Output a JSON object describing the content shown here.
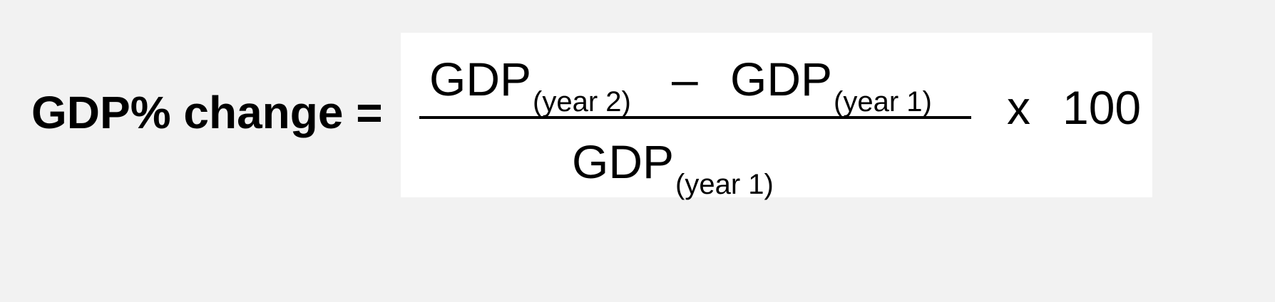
{
  "lhs_label": "GDP% change =",
  "numerator": {
    "left_term": "GDP",
    "left_subscript": "(year 2)",
    "operator": "–",
    "right_term": "GDP",
    "right_subscript": "(year 1)"
  },
  "denominator": {
    "term": "GDP",
    "subscript": "(year 1)"
  },
  "multiplier_symbol": "x",
  "multiplier_value": "100"
}
